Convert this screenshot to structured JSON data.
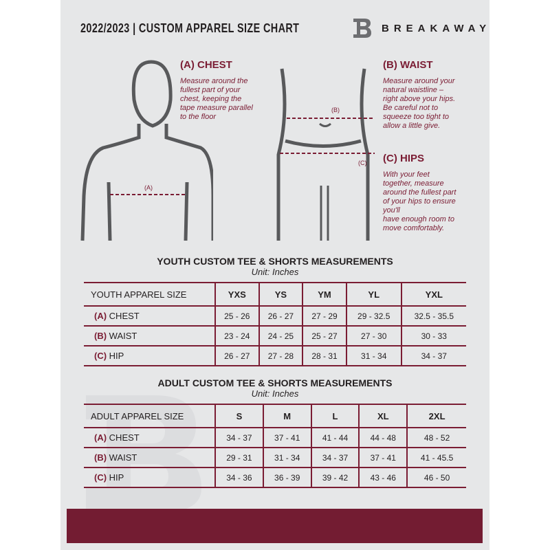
{
  "header": {
    "title": "2022/2023  |  CUSTOM APPAREL SIZE CHART",
    "brand": "BREAKAWAY"
  },
  "chest": {
    "heading": "(A) CHEST",
    "text": "Measure around the\nfullest part of your\nchest, keeping the\ntape measure parallel\nto the floor",
    "marker": "(A)"
  },
  "waist": {
    "heading": "(B) WAIST",
    "text": "Measure around your\nnatural waistline –\nright above your hips.\nBe careful not to\nsqueeze too tight to\nallow a little give.",
    "marker": "(B)"
  },
  "hips": {
    "heading": "(C) HIPS",
    "text": "With your feet\ntogether, measure\naround the fullest part\nof your hips to ensure\nyou'll\nhave enough room to\nmove comfortably.",
    "marker": "(C)"
  },
  "youth": {
    "title": "YOUTH CUSTOM TEE & SHORTS MEASUREMENTS",
    "unit": "Unit: Inches",
    "header": [
      "YOUTH APPAREL SIZE",
      "YXS",
      "YS",
      "YM",
      "YL",
      "YXL"
    ],
    "rows": [
      {
        "code": "(A)",
        "name": "CHEST",
        "values": [
          "25 - 26",
          "26 - 27",
          "27 - 29",
          "29 - 32.5",
          "32.5 - 35.5"
        ]
      },
      {
        "code": "(B)",
        "name": "WAIST",
        "values": [
          "23 - 24",
          "24 - 25",
          "25 - 27",
          "27 - 30",
          "30 - 33"
        ]
      },
      {
        "code": "(C)",
        "name": "HIP",
        "values": [
          "26 - 27",
          "27 - 28",
          "28 - 31",
          "31 - 34",
          "34 - 37"
        ]
      }
    ]
  },
  "adult": {
    "title": "ADULT CUSTOM TEE & SHORTS MEASUREMENTS",
    "unit": "Unit: Inches",
    "header": [
      "ADULT APPAREL SIZE",
      "S",
      "M",
      "L",
      "XL",
      "2XL"
    ],
    "rows": [
      {
        "code": "(A)",
        "name": "CHEST",
        "values": [
          "34 - 37",
          "37 - 41",
          "41 - 44",
          "44 - 48",
          "48 - 52"
        ]
      },
      {
        "code": "(B)",
        "name": "WAIST",
        "values": [
          "29 - 31",
          "31 - 34",
          "34 - 37",
          "37 - 41",
          "41 - 45.5"
        ]
      },
      {
        "code": "(C)",
        "name": "HIP",
        "values": [
          "34 - 36",
          "36 - 39",
          "39 - 42",
          "43 - 46",
          "46 - 50"
        ]
      }
    ]
  },
  "colors": {
    "accent": "#7a1c33",
    "footer": "#731c32",
    "background": "#e6e7e8"
  }
}
